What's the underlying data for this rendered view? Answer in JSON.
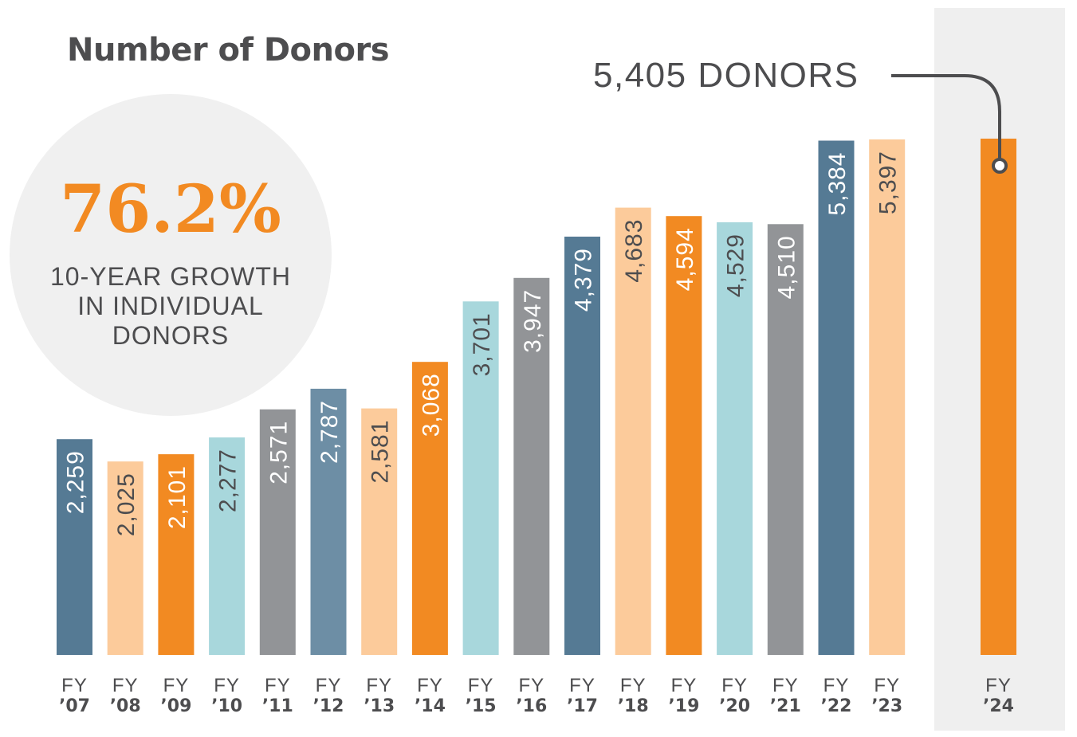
{
  "title": "Number of Donors",
  "growth": {
    "percent": "76.2%",
    "caption": "10-YEAR GROWTH\nIN INDIVIDUAL\nDONORS"
  },
  "callout": "5,405 DONORS",
  "colors": {
    "slate_blue": "#557a94",
    "peach": "#fccb9b",
    "orange": "#f28a22",
    "light_teal": "#a8d7dc",
    "gray": "#929497",
    "steel_blue": "#6d8ea5",
    "highlight_panel": "#efefef",
    "text": "#4d4d4f"
  },
  "chart_data": {
    "type": "bar",
    "title": "Number of Donors",
    "ylabel": "",
    "xlabel": "",
    "grid": false,
    "categories": [
      {
        "line1": "FY",
        "line2": "’07"
      },
      {
        "line1": "FY",
        "line2": "’08"
      },
      {
        "line1": "FY",
        "line2": "’09"
      },
      {
        "line1": "FY",
        "line2": "’10"
      },
      {
        "line1": "FY",
        "line2": "’11"
      },
      {
        "line1": "FY",
        "line2": "’12"
      },
      {
        "line1": "FY",
        "line2": "’13"
      },
      {
        "line1": "FY",
        "line2": "’14"
      },
      {
        "line1": "FY",
        "line2": "’15"
      },
      {
        "line1": "FY",
        "line2": "’16"
      },
      {
        "line1": "FY",
        "line2": "’17"
      },
      {
        "line1": "FY",
        "line2": "’18"
      },
      {
        "line1": "FY",
        "line2": "’19"
      },
      {
        "line1": "FY",
        "line2": "’20"
      },
      {
        "line1": "FY",
        "line2": "’21"
      },
      {
        "line1": "FY",
        "line2": "’22"
      },
      {
        "line1": "FY",
        "line2": "’23"
      },
      {
        "line1": "FY",
        "line2": "’24"
      }
    ],
    "values": [
      2259,
      2025,
      2101,
      2277,
      2571,
      2787,
      2581,
      3068,
      3701,
      3947,
      4379,
      4683,
      4594,
      4529,
      4510,
      5384,
      5397,
      5405
    ],
    "labels": [
      "2,259",
      "2,025",
      "2,101",
      "2,277",
      "2,571",
      "2,787",
      "2,581",
      "3,068",
      "3,701",
      "3,947",
      "4,379",
      "4,683",
      "4,594",
      "4,529",
      "4,510",
      "5,384",
      "5,397",
      ""
    ],
    "bar_colors": [
      "#557a94",
      "#fccb9b",
      "#f28a22",
      "#a8d7dc",
      "#929497",
      "#6d8ea5",
      "#fccb9b",
      "#f28a22",
      "#a8d7dc",
      "#929497",
      "#557a94",
      "#fccb9b",
      "#f28a22",
      "#a8d7dc",
      "#929497",
      "#557a94",
      "#fccb9b",
      "#f28a22"
    ],
    "label_colors": [
      "#ffffff",
      "#4d4d4f",
      "#ffffff",
      "#4d4d4f",
      "#ffffff",
      "#ffffff",
      "#4d4d4f",
      "#ffffff",
      "#4d4d4f",
      "#ffffff",
      "#ffffff",
      "#4d4d4f",
      "#ffffff",
      "#4d4d4f",
      "#ffffff",
      "#ffffff",
      "#4d4d4f",
      "#ffffff"
    ],
    "highlight_index": 17,
    "ylim": [
      0,
      5405
    ]
  }
}
